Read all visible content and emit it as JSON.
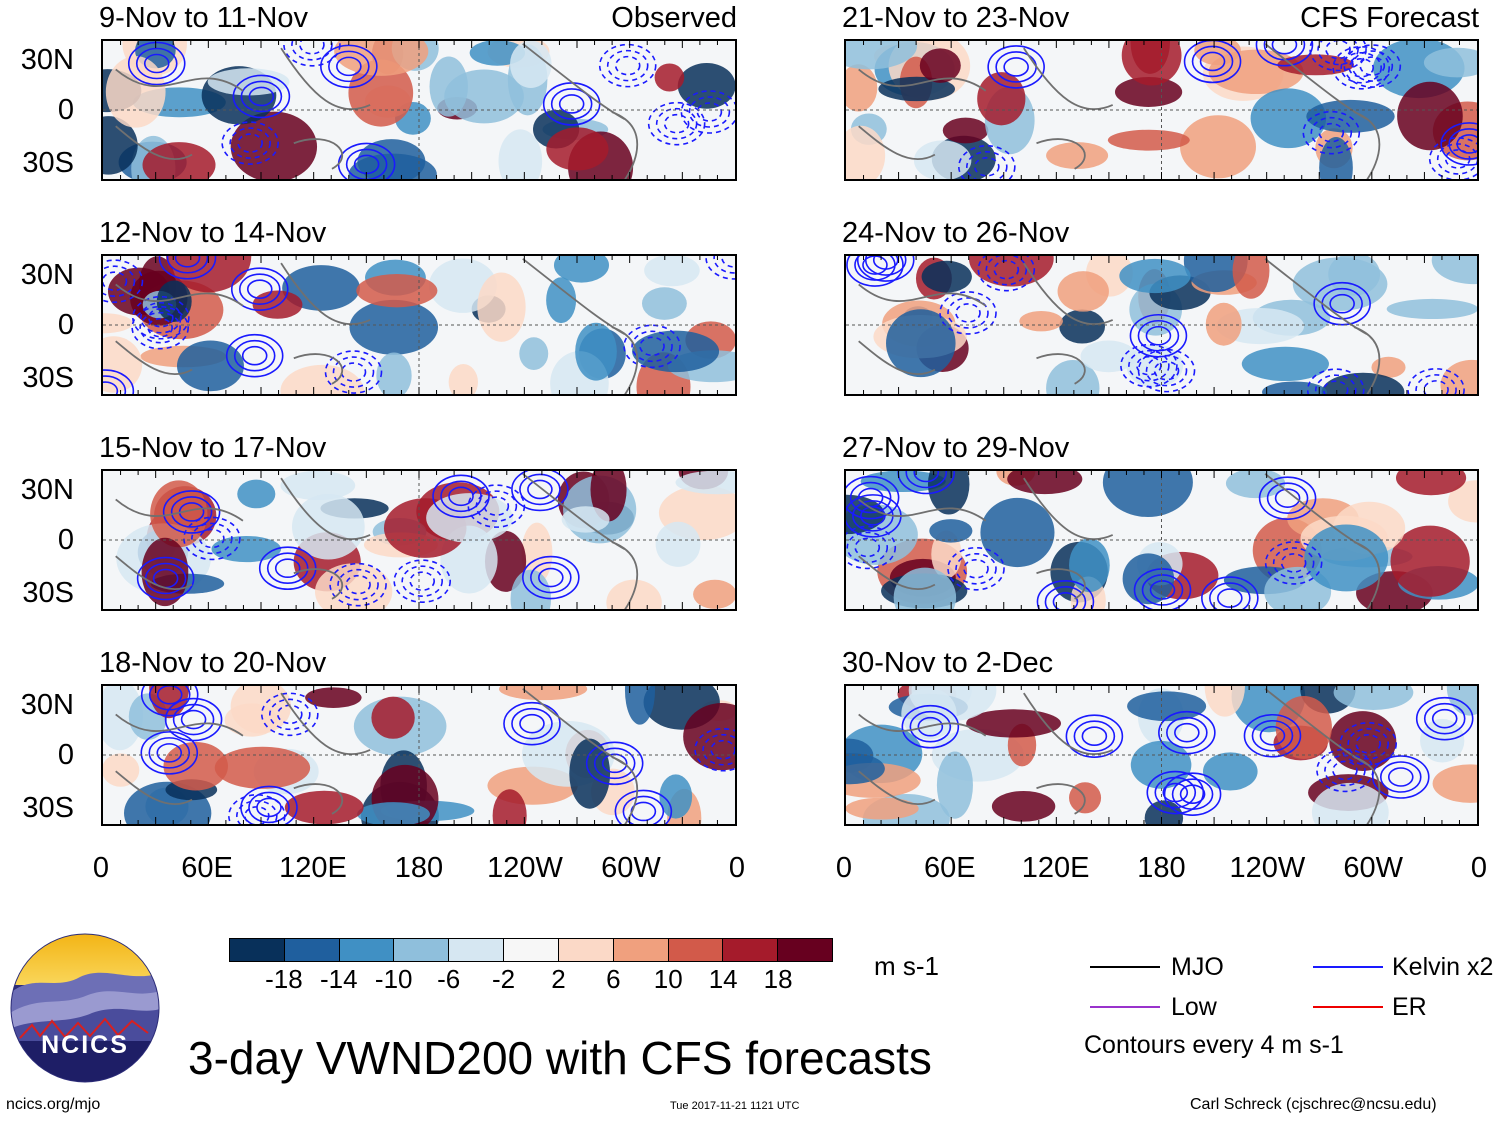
{
  "panels": {
    "left": [
      {
        "title": "9-Nov to 11-Nov",
        "tag": "Observed"
      },
      {
        "title": "12-Nov to 14-Nov",
        "tag": ""
      },
      {
        "title": "15-Nov to 17-Nov",
        "tag": ""
      },
      {
        "title": "18-Nov to 20-Nov",
        "tag": ""
      }
    ],
    "right": [
      {
        "title": "21-Nov to 23-Nov",
        "tag": "CFS Forecast"
      },
      {
        "title": "24-Nov to 26-Nov",
        "tag": ""
      },
      {
        "title": "27-Nov to 29-Nov",
        "tag": ""
      },
      {
        "title": "30-Nov to 2-Dec",
        "tag": ""
      }
    ]
  },
  "chart_data": {
    "type": "heatmap",
    "title": "3-day VWND200 with CFS forecasts",
    "variable": "VWND200",
    "lat_ticks": [
      "30N",
      "0",
      "30S"
    ],
    "lon_ticks": [
      "0",
      "60E",
      "120E",
      "180",
      "120W",
      "60W",
      "0"
    ],
    "colorbar": {
      "levels": [
        "-18",
        "-14",
        "-10",
        "-6",
        "-2",
        "2",
        "6",
        "10",
        "14",
        "18"
      ],
      "colors": [
        "#08305a",
        "#1f5f9e",
        "#4090c4",
        "#8fbfdc",
        "#d6e7f2",
        "#f7f7f7",
        "#fbd9c7",
        "#f0a07e",
        "#d25a4a",
        "#a51b2b",
        "#67001f"
      ],
      "units": "m s-1"
    },
    "contour_interval_text": "Contours every 4 m s-1",
    "legend": [
      {
        "label": "MJO",
        "color": "#000000"
      },
      {
        "label": "Kelvin x2",
        "color": "#1a1aff"
      },
      {
        "label": "Low",
        "color": "#9933cc"
      },
      {
        "label": "ER",
        "color": "#ee0000"
      }
    ]
  },
  "footer": {
    "logo_text": "NCICS",
    "website": "ncics.org/mjo",
    "timestamp": "Tue 2017-11-21 1121 UTC",
    "author": "Carl Schreck (cjschrec@ncsu.edu)"
  }
}
